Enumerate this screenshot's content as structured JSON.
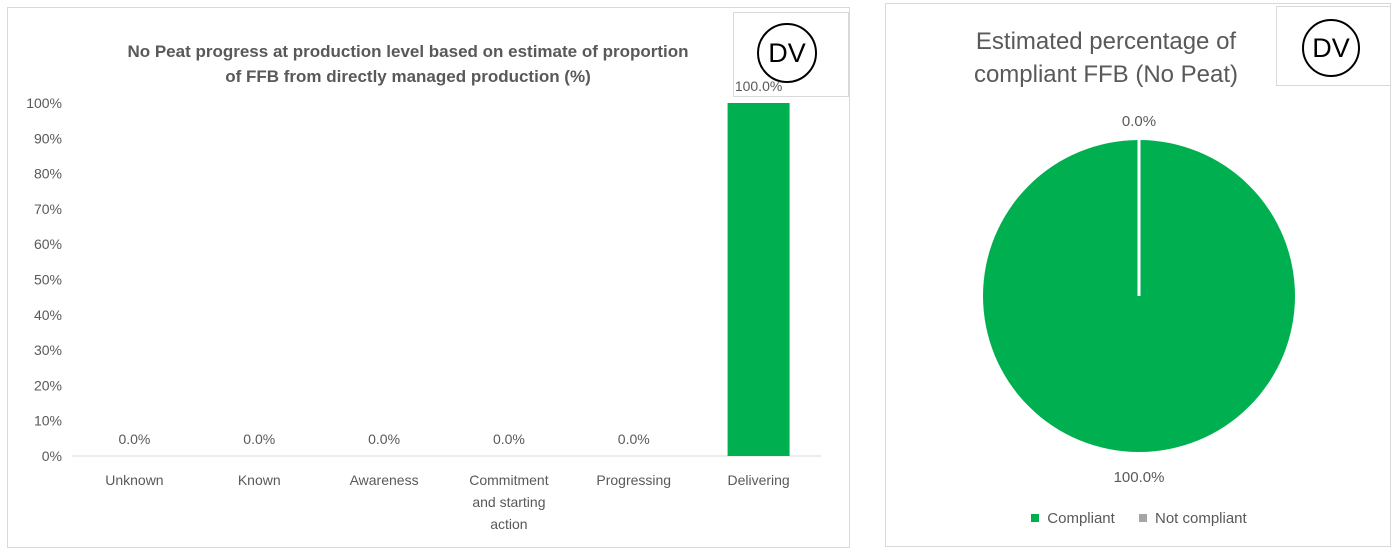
{
  "chart_data": [
    {
      "type": "bar",
      "title": "No Peat progress at production level based on estimate of proportion of FFB from directly managed production (%)",
      "title_lines": [
        "No Peat progress at production level based on estimate of proportion",
        "of FFB from directly managed production (%)"
      ],
      "categories": [
        "Unknown",
        "Known",
        "Awareness",
        "Commitment and starting action",
        "Progressing",
        "Delivering"
      ],
      "category_lines": [
        [
          "Unknown"
        ],
        [
          "Known"
        ],
        [
          "Awareness"
        ],
        [
          "Commitment",
          "and starting",
          "action"
        ],
        [
          "Progressing"
        ],
        [
          "Delivering"
        ]
      ],
      "values": [
        0,
        0,
        0,
        0,
        0,
        100
      ],
      "data_labels": [
        "0.0%",
        "0.0%",
        "0.0%",
        "0.0%",
        "0.0%",
        "100.0%"
      ],
      "ylim": [
        0,
        100
      ],
      "y_ticks": [
        "0%",
        "10%",
        "20%",
        "30%",
        "40%",
        "50%",
        "60%",
        "70%",
        "80%",
        "90%",
        "100%"
      ],
      "grid": false,
      "bar_color": "#00b050",
      "badge": "DV"
    },
    {
      "type": "pie",
      "title": "Estimated percentage of compliant FFB (No Peat)",
      "title_lines": [
        "Estimated percentage of",
        "compliant FFB (No Peat)"
      ],
      "slices": [
        {
          "name": "Compliant",
          "value": 100,
          "label": "100.0%",
          "color": "#00b050"
        },
        {
          "name": "Not compliant",
          "value": 0,
          "label": "0.0%",
          "color": "#a5a5a5"
        }
      ],
      "legend_position": "bottom",
      "badge": "DV"
    }
  ]
}
